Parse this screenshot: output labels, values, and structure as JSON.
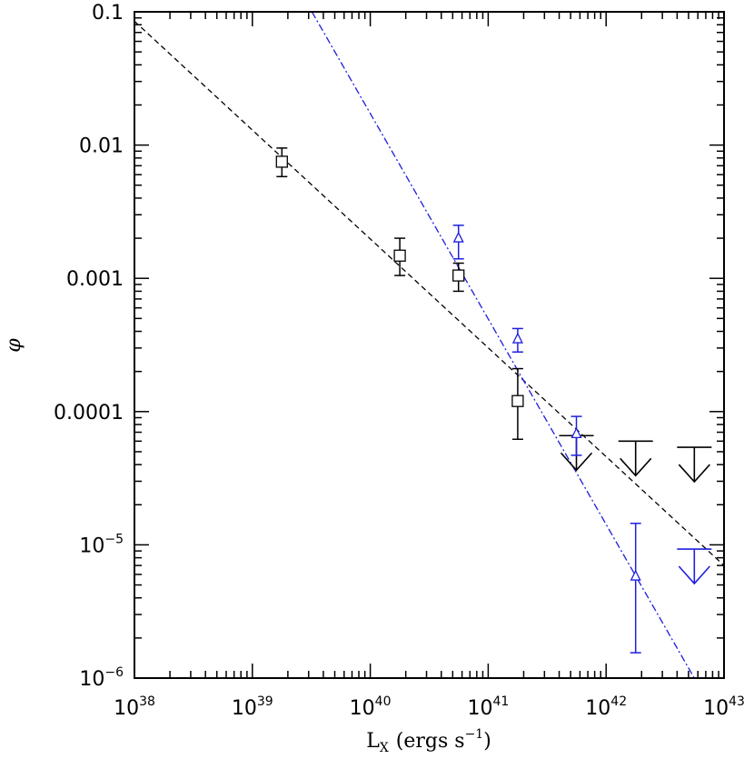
{
  "chart_data": {
    "type": "scatter",
    "title": "",
    "xlabel": "L",
    "xlabel_sub": "X",
    "xlabel_units": "(ergs s",
    "xlabel_units_exp": "−1",
    "xlabel_units_close": ")",
    "ylabel": "φ",
    "x_scale": "log",
    "y_scale": "log",
    "xlim": [
      1e+38,
      1e+43
    ],
    "ylim": [
      1e-06,
      0.1
    ],
    "x_ticks": [
      {
        "value": 1e+38,
        "base": "10",
        "exp": "38"
      },
      {
        "value": 1e+39,
        "base": "10",
        "exp": "39"
      },
      {
        "value": 1e+40,
        "base": "10",
        "exp": "40"
      },
      {
        "value": 1e+41,
        "base": "10",
        "exp": "41"
      },
      {
        "value": 1e+42,
        "base": "10",
        "exp": "42"
      },
      {
        "value": 1e+43,
        "base": "10",
        "exp": "43"
      }
    ],
    "y_ticks": [
      {
        "value": 0.1,
        "text": "0.1",
        "base": "",
        "exp": ""
      },
      {
        "value": 0.01,
        "text": "0.01",
        "base": "",
        "exp": ""
      },
      {
        "value": 0.001,
        "text": "0.001",
        "base": "",
        "exp": ""
      },
      {
        "value": 0.0001,
        "text": "0.0001",
        "base": "",
        "exp": ""
      },
      {
        "value": 1e-05,
        "text": "",
        "base": "10",
        "exp": "−5"
      },
      {
        "value": 1e-06,
        "text": "",
        "base": "10",
        "exp": "−6"
      }
    ],
    "grid": false,
    "legend": "none",
    "series": [
      {
        "marker": "square",
        "color": "#000000",
        "points": [
          {
            "x": 1.78e+39,
            "y": 0.0075,
            "ylo": 0.0058,
            "yhi": 0.0095
          },
          {
            "x": 1.78e+40,
            "y": 0.00148,
            "ylo": 0.00105,
            "yhi": 0.002
          },
          {
            "x": 5.6e+40,
            "y": 0.00105,
            "ylo": 0.0008,
            "yhi": 0.0013
          },
          {
            "x": 1.78e+41,
            "y": 0.00012,
            "ylo": 6.2e-05,
            "yhi": 0.00021
          }
        ],
        "upper_limits": [
          {
            "x": 5.6e+41,
            "y": 6.6e-05
          },
          {
            "x": 1.78e+42,
            "y": 6e-05
          },
          {
            "x": 5.6e+42,
            "y": 5.4e-05
          }
        ],
        "fit": {
          "style": "dashed",
          "x1": 1e+38,
          "y1": 0.085,
          "x2": 1e+43,
          "y2": 7e-06
        }
      },
      {
        "marker": "triangle",
        "color": "#1f1fdd",
        "points": [
          {
            "x": 5.6e+40,
            "y": 0.002,
            "ylo": 0.0014,
            "yhi": 0.0025
          },
          {
            "x": 1.78e+41,
            "y": 0.00035,
            "ylo": 0.00028,
            "yhi": 0.00042
          },
          {
            "x": 5.6e+41,
            "y": 6.8e-05,
            "ylo": 4.7e-05,
            "yhi": 9.2e-05
          },
          {
            "x": 1.78e+42,
            "y": 5.8e-06,
            "ylo": 1.55e-06,
            "yhi": 1.45e-05
          }
        ],
        "upper_limits": [
          {
            "x": 5.6e+42,
            "y": 9.3e-06
          }
        ],
        "fit": {
          "style": "dash-dot",
          "x1": 3.2e+39,
          "y1": 0.1,
          "x2": 5.6e+42,
          "y2": 1e-06
        }
      }
    ]
  }
}
